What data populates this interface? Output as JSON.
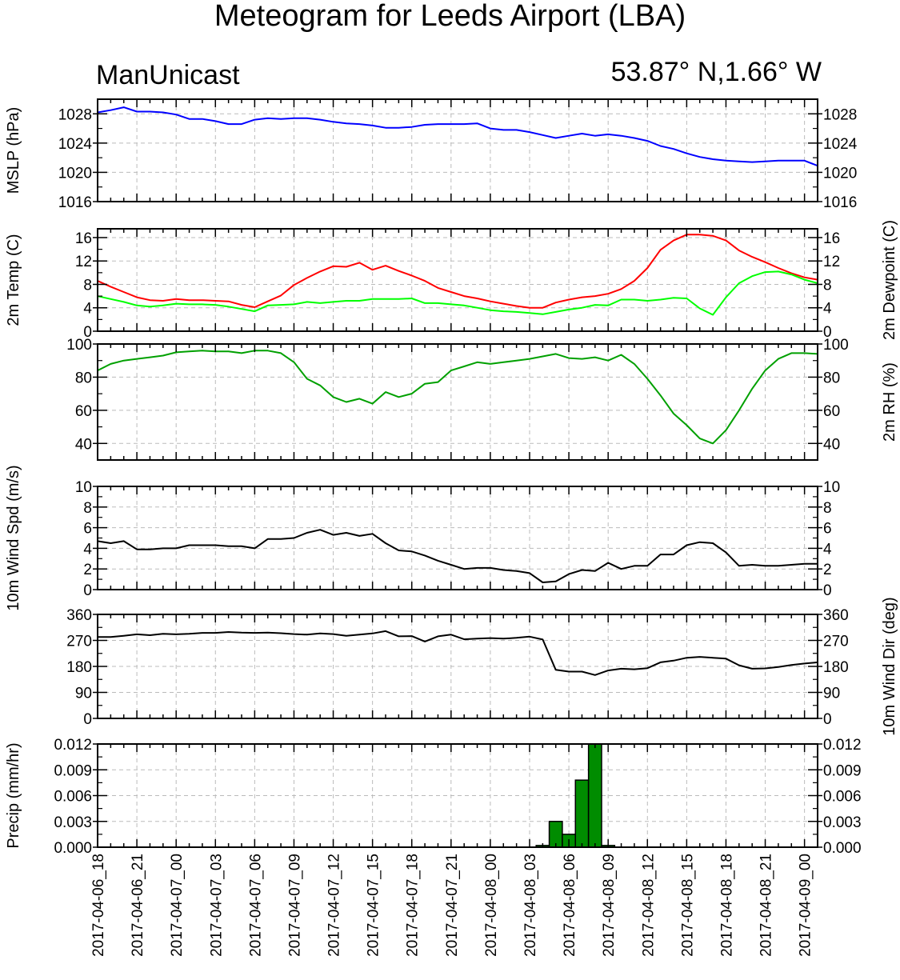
{
  "title": "Meteogram for Leeds Airport (LBA)",
  "model": "ManUnicast",
  "location": "53.87° N,1.66° W",
  "chart_data": [
    {
      "id": "mslp",
      "type": "line",
      "ylabel_left": "MSLP (hPa)",
      "ylabel_right": "",
      "ylim": [
        1016,
        1030
      ],
      "yticks": [
        1016,
        1020,
        1024,
        1028
      ],
      "series": [
        {
          "color": "#0000ff",
          "values": [
            1028.2,
            1028.5,
            1028.9,
            1028.3,
            1028.3,
            1028.2,
            1027.9,
            1027.3,
            1027.3,
            1027.0,
            1026.6,
            1026.6,
            1027.2,
            1027.4,
            1027.3,
            1027.4,
            1027.4,
            1027.2,
            1026.9,
            1026.7,
            1026.6,
            1026.4,
            1026.1,
            1026.1,
            1026.2,
            1026.5,
            1026.6,
            1026.6,
            1026.6,
            1026.7,
            1026.0,
            1025.8,
            1025.8,
            1025.5,
            1025.1,
            1024.7,
            1025.0,
            1025.3,
            1025.0,
            1025.2,
            1025.0,
            1024.7,
            1024.3,
            1023.6,
            1023.2,
            1022.6,
            1022.1,
            1021.8,
            1021.6,
            1021.5,
            1021.4,
            1021.5,
            1021.6,
            1021.6,
            1021.6,
            1020.9
          ]
        }
      ]
    },
    {
      "id": "temp",
      "type": "line",
      "ylabel_left": "2m Temp (C)",
      "ylabel_right": "2m Dewpoint (C)",
      "ylim": [
        0,
        17.5
      ],
      "yticks": [
        0,
        4,
        8,
        12,
        16
      ],
      "series": [
        {
          "color": "#ff0000",
          "values": [
            8.6,
            7.6,
            6.7,
            5.8,
            5.3,
            5.2,
            5.5,
            5.3,
            5.3,
            5.2,
            5.1,
            4.5,
            4.1,
            5.1,
            6.1,
            7.9,
            9.1,
            10.2,
            11.1,
            11.0,
            11.7,
            10.5,
            11.2,
            10.3,
            9.5,
            8.6,
            7.4,
            6.7,
            6.0,
            5.6,
            5.1,
            4.7,
            4.3,
            4.0,
            4.0,
            4.9,
            5.4,
            5.8,
            6.0,
            6.4,
            7.2,
            8.6,
            10.8,
            13.9,
            15.5,
            16.5,
            16.5,
            16.3,
            15.5,
            13.8,
            12.7,
            11.8,
            10.8,
            9.9,
            9.2,
            8.8
          ]
        },
        {
          "color": "#00ff00",
          "values": [
            6.0,
            5.5,
            5.0,
            4.4,
            4.2,
            4.4,
            4.7,
            4.6,
            4.6,
            4.5,
            4.2,
            3.8,
            3.4,
            4.4,
            4.5,
            4.6,
            5.0,
            4.8,
            5.0,
            5.2,
            5.2,
            5.5,
            5.5,
            5.5,
            5.6,
            4.8,
            4.8,
            4.6,
            4.4,
            4.0,
            3.6,
            3.4,
            3.3,
            3.1,
            2.9,
            3.3,
            3.7,
            4.0,
            4.5,
            4.4,
            5.4,
            5.4,
            5.2,
            5.4,
            5.7,
            5.6,
            3.9,
            2.8,
            5.8,
            8.2,
            9.4,
            10.1,
            10.2,
            9.7,
            8.8,
            8.2
          ]
        }
      ]
    },
    {
      "id": "rh",
      "type": "line",
      "ylabel_left": "",
      "ylabel_right": "2m RH (%)",
      "ylim": [
        30,
        100
      ],
      "yticks": [
        40,
        60,
        80,
        100
      ],
      "series": [
        {
          "color": "#00a000",
          "values": [
            84,
            88,
            90,
            91,
            92,
            93,
            95,
            95.5,
            96,
            95.5,
            95.5,
            94.5,
            96,
            96,
            94.5,
            89,
            79,
            75,
            68,
            65,
            67,
            64,
            71,
            68,
            70,
            76,
            77,
            84,
            86.5,
            89,
            88,
            89,
            90,
            91,
            92.5,
            94,
            91.5,
            91,
            92,
            90,
            93.5,
            88,
            79,
            69,
            58,
            51,
            43,
            40,
            48,
            60,
            73,
            84,
            91,
            94.5,
            94.5,
            94
          ]
        }
      ]
    },
    {
      "id": "wspd",
      "type": "line",
      "ylabel_left": "10m Wind Spd (m/s)",
      "ylabel_right": "",
      "ylim": [
        0,
        10
      ],
      "yticks": [
        0,
        2,
        4,
        6,
        8,
        10
      ],
      "series": [
        {
          "color": "#000000",
          "values": [
            4.7,
            4.5,
            4.7,
            3.9,
            3.9,
            4.0,
            4.0,
            4.3,
            4.3,
            4.3,
            4.2,
            4.2,
            4.0,
            4.9,
            4.9,
            5.0,
            5.5,
            5.8,
            5.3,
            5.5,
            5.2,
            5.4,
            4.5,
            3.8,
            3.7,
            3.3,
            2.8,
            2.4,
            2.0,
            2.1,
            2.1,
            1.9,
            1.8,
            1.6,
            0.7,
            0.8,
            1.5,
            1.9,
            1.8,
            2.6,
            2.0,
            2.3,
            2.3,
            3.4,
            3.4,
            4.3,
            4.6,
            4.5,
            3.6,
            2.3,
            2.4,
            2.3,
            2.3,
            2.4,
            2.5,
            2.5
          ]
        }
      ]
    },
    {
      "id": "wdir",
      "type": "line",
      "ylabel_left": "",
      "ylabel_right": "10m Wind Dir (deg)",
      "ylim": [
        0,
        360
      ],
      "yticks": [
        0,
        90,
        180,
        270,
        360
      ],
      "series": [
        {
          "color": "#000000",
          "values": [
            282,
            282,
            286,
            291,
            288,
            293,
            291,
            293,
            296,
            296,
            299,
            297,
            296,
            297,
            295,
            292,
            290,
            294,
            292,
            286,
            290,
            294,
            302,
            284,
            285,
            266,
            284,
            290,
            274,
            276,
            278,
            276,
            279,
            283,
            273,
            168,
            162,
            162,
            150,
            166,
            172,
            170,
            174,
            194,
            200,
            210,
            213,
            210,
            207,
            184,
            172,
            173,
            178,
            185,
            190,
            194
          ]
        }
      ]
    },
    {
      "id": "precip",
      "type": "bar",
      "ylabel_left": "Precip (mm/hr)",
      "ylabel_right": "",
      "ylim": [
        0,
        0.012
      ],
      "yticks": [
        0.0,
        0.003,
        0.006,
        0.009,
        0.012
      ],
      "ytick_labels": [
        "0.000",
        "0.003",
        "0.006",
        "0.009",
        "0.012"
      ],
      "color": "#008c00",
      "bars": [
        {
          "index": 34,
          "value": 0.0002
        },
        {
          "index": 35,
          "value": 0.003
        },
        {
          "index": 36,
          "value": 0.0015
        },
        {
          "index": 37,
          "value": 0.0078
        },
        {
          "index": 38,
          "value": 0.012
        },
        {
          "index": 39,
          "value": 0.0002
        }
      ]
    }
  ],
  "x_axis": {
    "start": "2017-04-06_18",
    "step_hours": 1,
    "n_points": 56,
    "tick_labels": [
      "2017-04-06_18",
      "2017-04-06_21",
      "2017-04-07_00",
      "2017-04-07_03",
      "2017-04-07_06",
      "2017-04-07_09",
      "2017-04-07_12",
      "2017-04-07_15",
      "2017-04-07_18",
      "2017-04-07_21",
      "2017-04-08_00",
      "2017-04-08_03",
      "2017-04-08_06",
      "2017-04-08_09",
      "2017-04-08_12",
      "2017-04-08_15",
      "2017-04-08_18",
      "2017-04-08_21",
      "2017-04-09_00"
    ],
    "grid": true
  }
}
